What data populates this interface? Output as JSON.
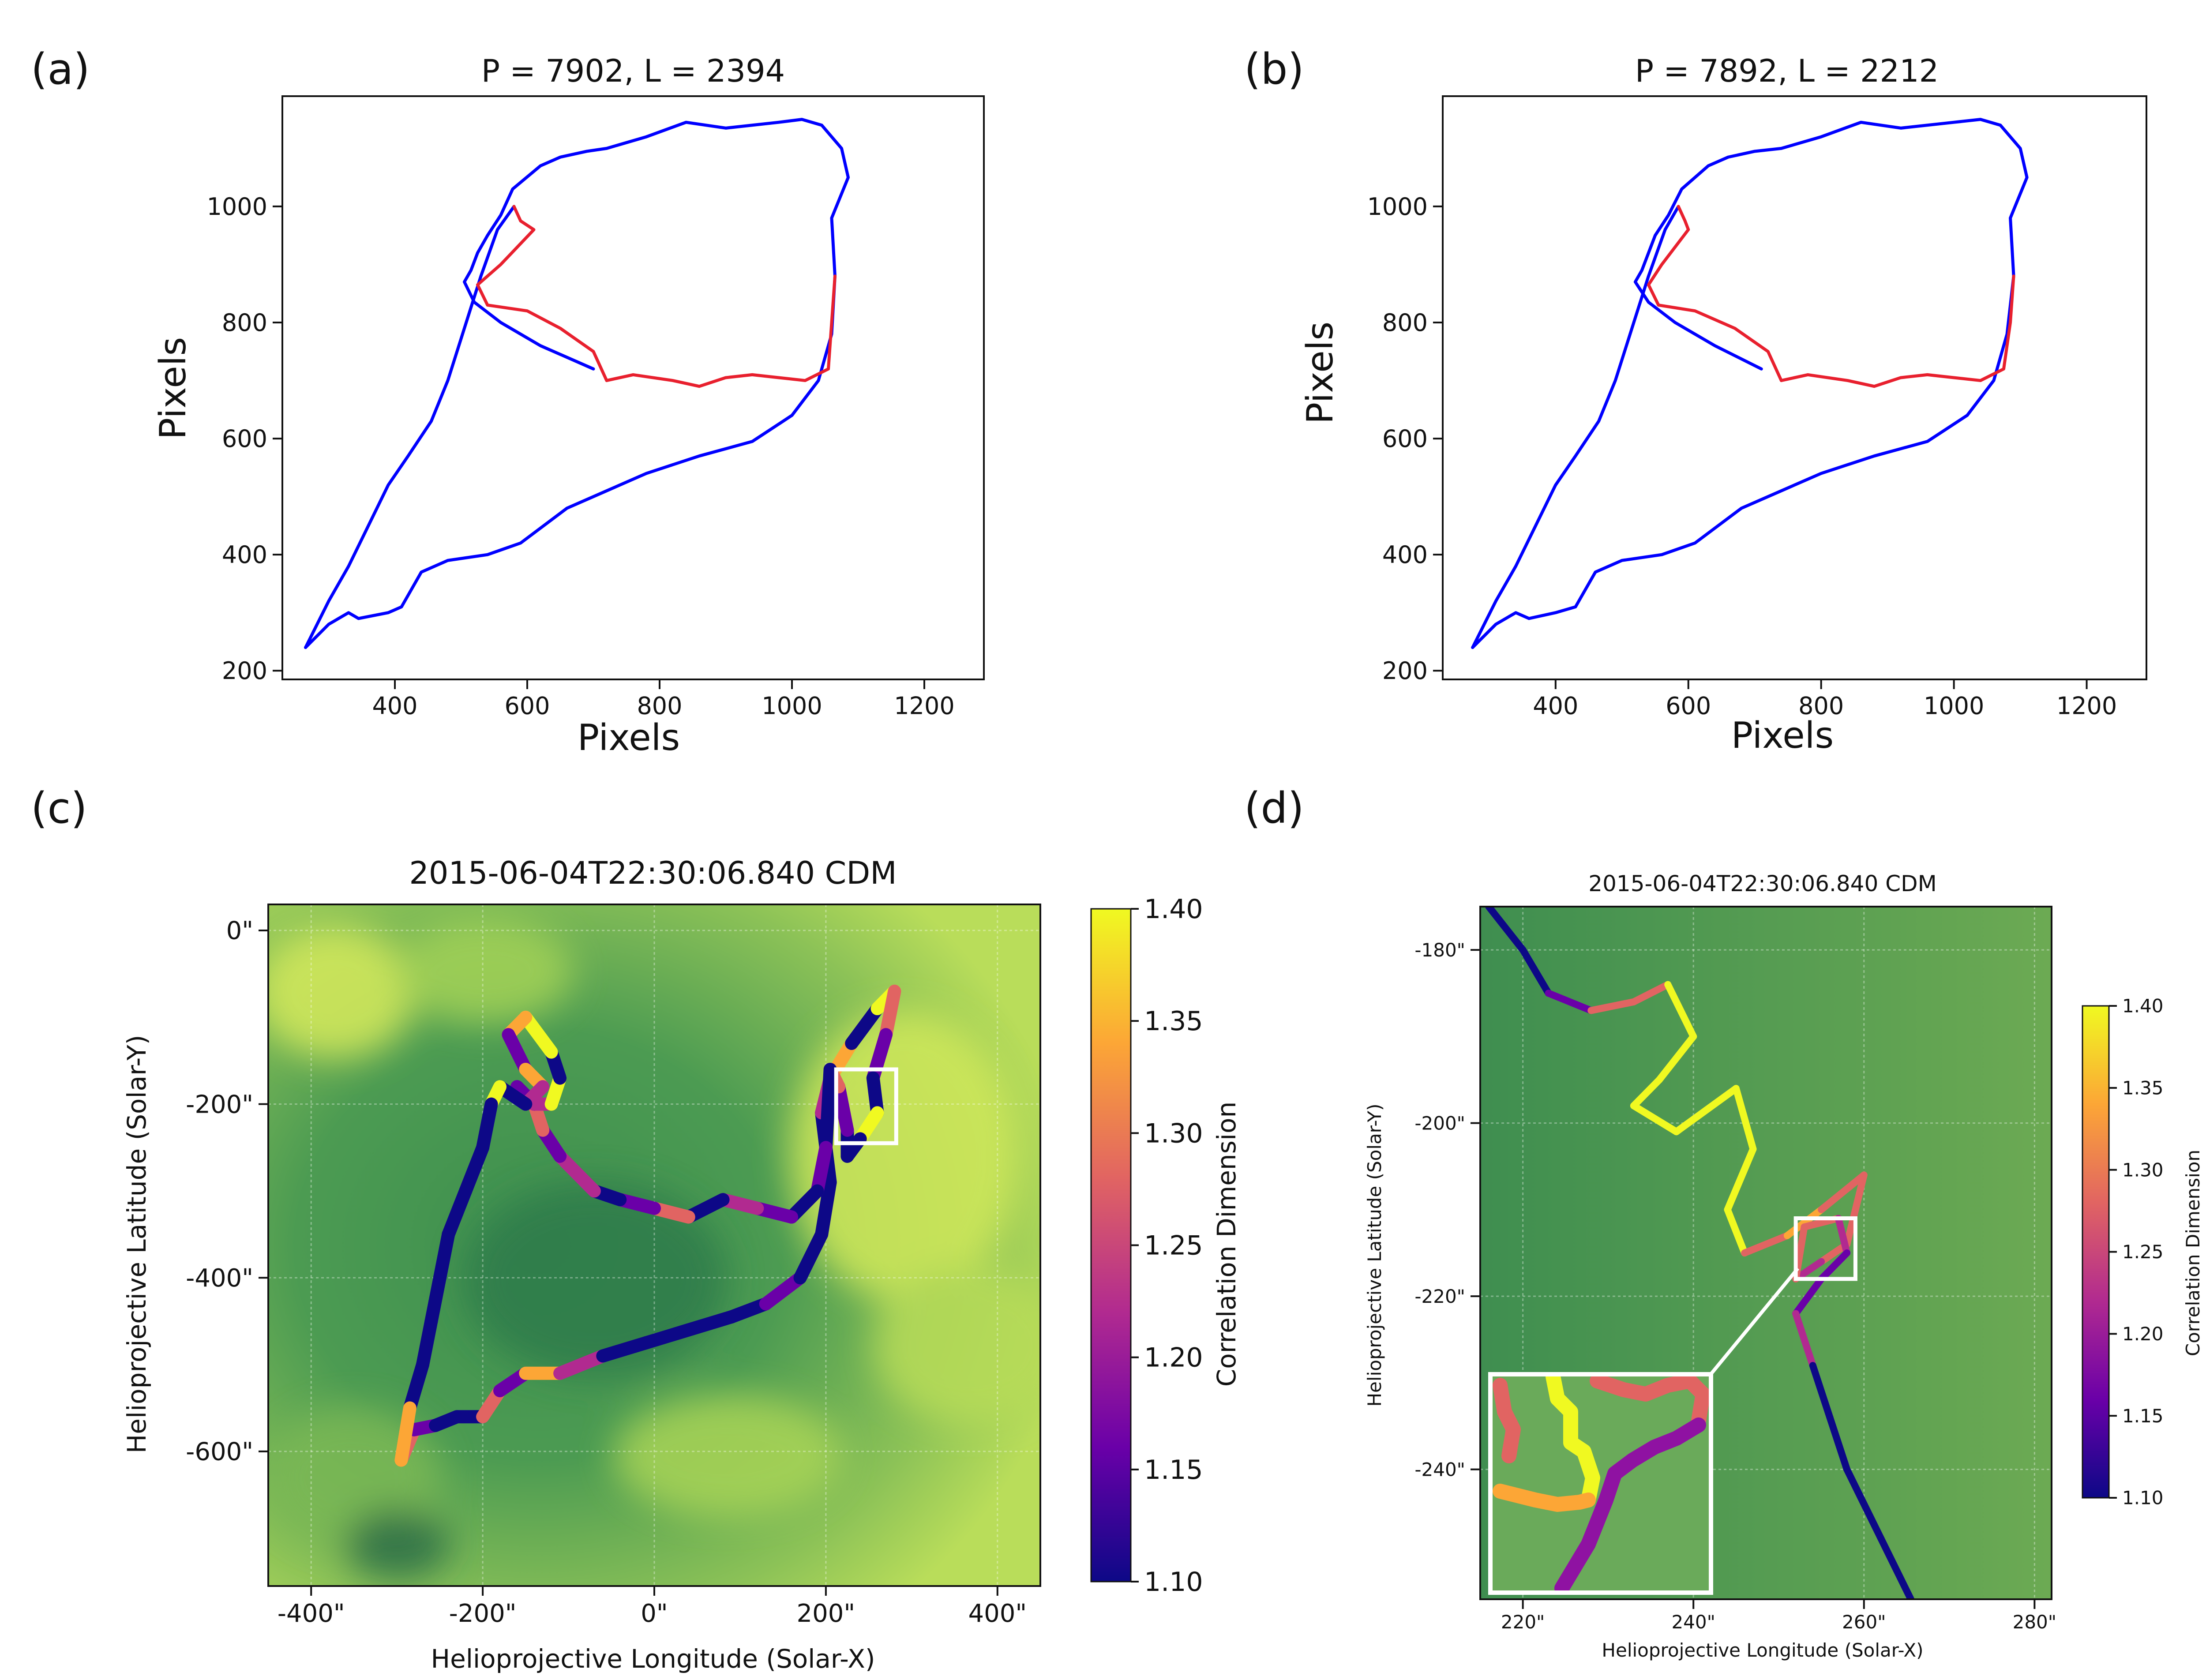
{
  "panel_labels": {
    "a": "(a)",
    "b": "(b)",
    "c": "(c)",
    "d": "(d)"
  },
  "colors": {
    "boundary": "#0000ff",
    "flux_rope": "#e8202e",
    "map_base": "#5fa455",
    "map_dark": "#2f7f4e",
    "map_bright": "#d7ec58",
    "colormap_plasma": [
      "#0d0887",
      "#6a00a8",
      "#b12a90",
      "#e16462",
      "#fca636",
      "#f0f921"
    ]
  },
  "chart_data": [
    {
      "id": "a",
      "type": "line",
      "title": "P = 7902,  L = 2394",
      "xlabel": "Pixels",
      "ylabel": "Pixels",
      "xlim": [
        230,
        1290
      ],
      "ylim": [
        185,
        1190
      ],
      "xticks": [
        400,
        600,
        800,
        1000,
        1200
      ],
      "yticks": [
        200,
        400,
        600,
        800,
        1000
      ],
      "series": [
        {
          "color": "#0000ff",
          "x": [
            265,
            300,
            330,
            345,
            390,
            410,
            440,
            480,
            540,
            590,
            660,
            720,
            780,
            860,
            940,
            1000,
            1040,
            1060,
            1065,
            1060,
            1085,
            1075,
            1045,
            1015,
            980,
            900,
            840,
            780,
            720,
            690,
            650,
            620,
            578,
            560,
            540,
            525,
            515,
            505,
            520,
            560,
            620,
            700
          ],
          "y": [
            240,
            280,
            300,
            290,
            300,
            310,
            370,
            390,
            400,
            420,
            480,
            510,
            540,
            570,
            595,
            640,
            700,
            780,
            880,
            980,
            1050,
            1100,
            1140,
            1150,
            1145,
            1135,
            1145,
            1120,
            1100,
            1095,
            1085,
            1070,
            1030,
            985,
            950,
            920,
            890,
            870,
            835,
            800,
            760,
            720
          ]
        },
        {
          "color": "#0000ff",
          "x": [
            265,
            300,
            330,
            360,
            390,
            420,
            455,
            480,
            505,
            530,
            555,
            580
          ],
          "y": [
            240,
            320,
            380,
            450,
            520,
            570,
            630,
            700,
            790,
            880,
            960,
            1000
          ]
        },
        {
          "color": "#e8202e",
          "x": [
            580,
            590,
            610,
            560,
            525,
            540,
            600,
            650,
            700,
            720,
            760,
            820,
            860,
            900,
            940,
            980,
            1020,
            1055,
            1060,
            1065
          ],
          "y": [
            1000,
            975,
            960,
            900,
            865,
            830,
            820,
            790,
            750,
            700,
            710,
            700,
            690,
            705,
            710,
            705,
            700,
            720,
            800,
            880
          ]
        }
      ]
    },
    {
      "id": "b",
      "type": "line",
      "title": "P = 7892,  L = 2212",
      "xlabel": "Pixels",
      "ylabel": "Pixels",
      "xlim": [
        230,
        1290
      ],
      "ylim": [
        185,
        1190
      ],
      "xticks": [
        400,
        600,
        800,
        1000,
        1200
      ],
      "yticks": [
        200,
        400,
        600,
        800,
        1000
      ],
      "series": [
        {
          "color": "#0000ff",
          "x": [
            275,
            310,
            340,
            360,
            400,
            430,
            460,
            500,
            560,
            610,
            680,
            740,
            800,
            880,
            960,
            1020,
            1060,
            1080,
            1090,
            1085,
            1110,
            1100,
            1070,
            1040,
            1000,
            920,
            860,
            800,
            740,
            700,
            660,
            630,
            590,
            570,
            550,
            540,
            530,
            520,
            540,
            580,
            640,
            710
          ],
          "y": [
            240,
            280,
            300,
            290,
            300,
            310,
            370,
            390,
            400,
            420,
            480,
            510,
            540,
            570,
            595,
            640,
            700,
            780,
            880,
            980,
            1050,
            1100,
            1140,
            1150,
            1145,
            1135,
            1145,
            1120,
            1100,
            1095,
            1085,
            1070,
            1030,
            985,
            950,
            920,
            890,
            870,
            835,
            800,
            760,
            720
          ]
        },
        {
          "color": "#0000ff",
          "x": [
            275,
            310,
            340,
            370,
            400,
            430,
            465,
            490,
            515,
            540,
            565,
            585
          ],
          "y": [
            240,
            320,
            380,
            450,
            520,
            570,
            630,
            700,
            790,
            880,
            960,
            1000
          ]
        },
        {
          "color": "#e8202e",
          "x": [
            585,
            595,
            600,
            560,
            540,
            555,
            610,
            670,
            720,
            740,
            780,
            840,
            880,
            920,
            960,
            1000,
            1040,
            1075,
            1085,
            1090
          ],
          "y": [
            1000,
            975,
            960,
            900,
            865,
            830,
            820,
            790,
            750,
            700,
            710,
            700,
            690,
            705,
            710,
            705,
            700,
            720,
            800,
            880
          ]
        }
      ]
    },
    {
      "id": "c",
      "type": "heatmap",
      "title": "2015-06-04T22:30:06.840 CDM",
      "xlabel": "Helioprojective Longitude (Solar-X)",
      "ylabel": "Helioprojective Latitude (Solar-Y)",
      "xlim": [
        -450,
        450
      ],
      "ylim": [
        -755,
        30
      ],
      "xticks": [
        "-400\"",
        "-200\"",
        "0\"",
        "200\"",
        "400\""
      ],
      "xtick_values": [
        -400,
        -200,
        0,
        200,
        400
      ],
      "yticks": [
        "0\"",
        "-200\"",
        "-400\"",
        "-600\""
      ],
      "ytick_values": [
        0,
        -200,
        -400,
        -600
      ],
      "grid": true,
      "colorbar": {
        "label": "Correlation Dimension",
        "range": [
          1.1,
          1.4
        ],
        "ticks": [
          "1.40",
          "1.35",
          "1.30",
          "1.25",
          "1.20",
          "1.15",
          "1.10"
        ]
      },
      "contour": {
        "x": [
          -295,
          -280,
          -255,
          -230,
          -200,
          -180,
          -150,
          -110,
          -60,
          -10,
          40,
          90,
          130,
          170,
          195,
          205,
          200,
          195,
          205,
          230,
          260,
          280,
          270,
          255,
          260,
          240,
          225,
          225,
          215,
          205,
          200,
          190,
          160,
          120,
          80,
          40,
          0,
          -40,
          -70,
          -110,
          -130,
          -140,
          -160,
          -140,
          -120,
          -110,
          -120,
          -150,
          -170,
          -150,
          -130,
          -150,
          -180,
          -190,
          -200,
          -220,
          -240,
          -250,
          -260,
          -270,
          -285,
          -295
        ],
        "y": [
          -610,
          -575,
          -570,
          -560,
          -560,
          -530,
          -510,
          -510,
          -490,
          -475,
          -460,
          -445,
          -430,
          -400,
          -350,
          -290,
          -250,
          -210,
          -170,
          -130,
          -90,
          -70,
          -120,
          -170,
          -210,
          -240,
          -260,
          -230,
          -180,
          -160,
          -250,
          -300,
          -330,
          -320,
          -310,
          -330,
          -320,
          -310,
          -300,
          -260,
          -230,
          -200,
          -180,
          -200,
          -200,
          -170,
          -140,
          -100,
          -120,
          -160,
          -180,
          -200,
          -180,
          -200,
          -250,
          -300,
          -350,
          -400,
          -450,
          -500,
          -550,
          -610
        ],
        "cd": [
          1.3,
          1.15,
          1.1,
          1.1,
          1.3,
          1.15,
          1.35,
          1.2,
          1.1,
          1.12,
          1.1,
          1.1,
          1.15,
          1.1,
          1.1,
          1.12,
          1.1,
          1.2,
          1.35,
          1.1,
          1.4,
          1.3,
          1.15,
          1.1,
          1.38,
          1.1,
          1.1,
          1.15,
          1.3,
          1.1,
          1.15,
          1.12,
          1.15,
          1.2,
          1.1,
          1.3,
          1.15,
          1.1,
          1.2,
          1.15,
          1.3,
          1.1,
          1.15,
          1.2,
          1.38,
          1.1,
          1.4,
          1.35,
          1.15,
          1.35,
          1.2,
          1.1,
          1.4,
          1.1,
          1.1,
          1.1,
          1.1,
          1.1,
          1.1,
          1.1,
          1.35,
          1.3
        ]
      },
      "inset_box": {
        "x": [
          212,
          282
        ],
        "y": [
          -160,
          -245
        ]
      }
    },
    {
      "id": "d",
      "type": "heatmap",
      "title": "2015-06-04T22:30:06.840 CDM",
      "xlabel": "Helioprojective Longitude (Solar-X)",
      "ylabel": "Helioprojective Latitude (Solar-Y)",
      "xlim": [
        215,
        282
      ],
      "ylim": [
        -255,
        -175
      ],
      "xticks": [
        "220\"",
        "240\"",
        "260\"",
        "280\""
      ],
      "xtick_values": [
        220,
        240,
        260,
        280
      ],
      "yticks": [
        "-180\"",
        "-200\"",
        "-220\"",
        "-240\""
      ],
      "ytick_values": [
        -180,
        -200,
        -220,
        -240
      ],
      "grid": true,
      "colorbar": {
        "label": "Correlation Dimension",
        "range": [
          1.1,
          1.4
        ],
        "ticks": [
          "1.40",
          "1.35",
          "1.30",
          "1.25",
          "1.20",
          "1.15",
          "1.10"
        ]
      },
      "contour": {
        "x": [
          216,
          220,
          223,
          228,
          233,
          237,
          240,
          236,
          233,
          238,
          245,
          247,
          244,
          246,
          251,
          255,
          260,
          258,
          255,
          252,
          253,
          257,
          258,
          255,
          252,
          254,
          256,
          258,
          262,
          266
        ],
        "y": [
          -175,
          -180,
          -185,
          -187,
          -186,
          -184,
          -190,
          -195,
          -198,
          -201,
          -196,
          -203,
          -210,
          -215,
          -213,
          -210,
          -206,
          -214,
          -216,
          -218,
          -212,
          -211,
          -215,
          -218,
          -222,
          -228,
          -234,
          -240,
          -248,
          -256
        ],
        "cd": [
          1.1,
          1.12,
          1.15,
          1.25,
          1.3,
          1.4,
          1.38,
          1.38,
          1.4,
          1.4,
          1.4,
          1.38,
          1.4,
          1.3,
          1.35,
          1.3,
          1.28,
          1.3,
          1.2,
          1.3,
          1.25,
          1.2,
          1.15,
          1.15,
          1.2,
          1.1,
          1.1,
          1.1,
          1.1,
          1.1
        ]
      },
      "zoom_box": {
        "x": [
          252,
          259
        ],
        "y": [
          -211,
          -218
        ]
      }
    }
  ]
}
